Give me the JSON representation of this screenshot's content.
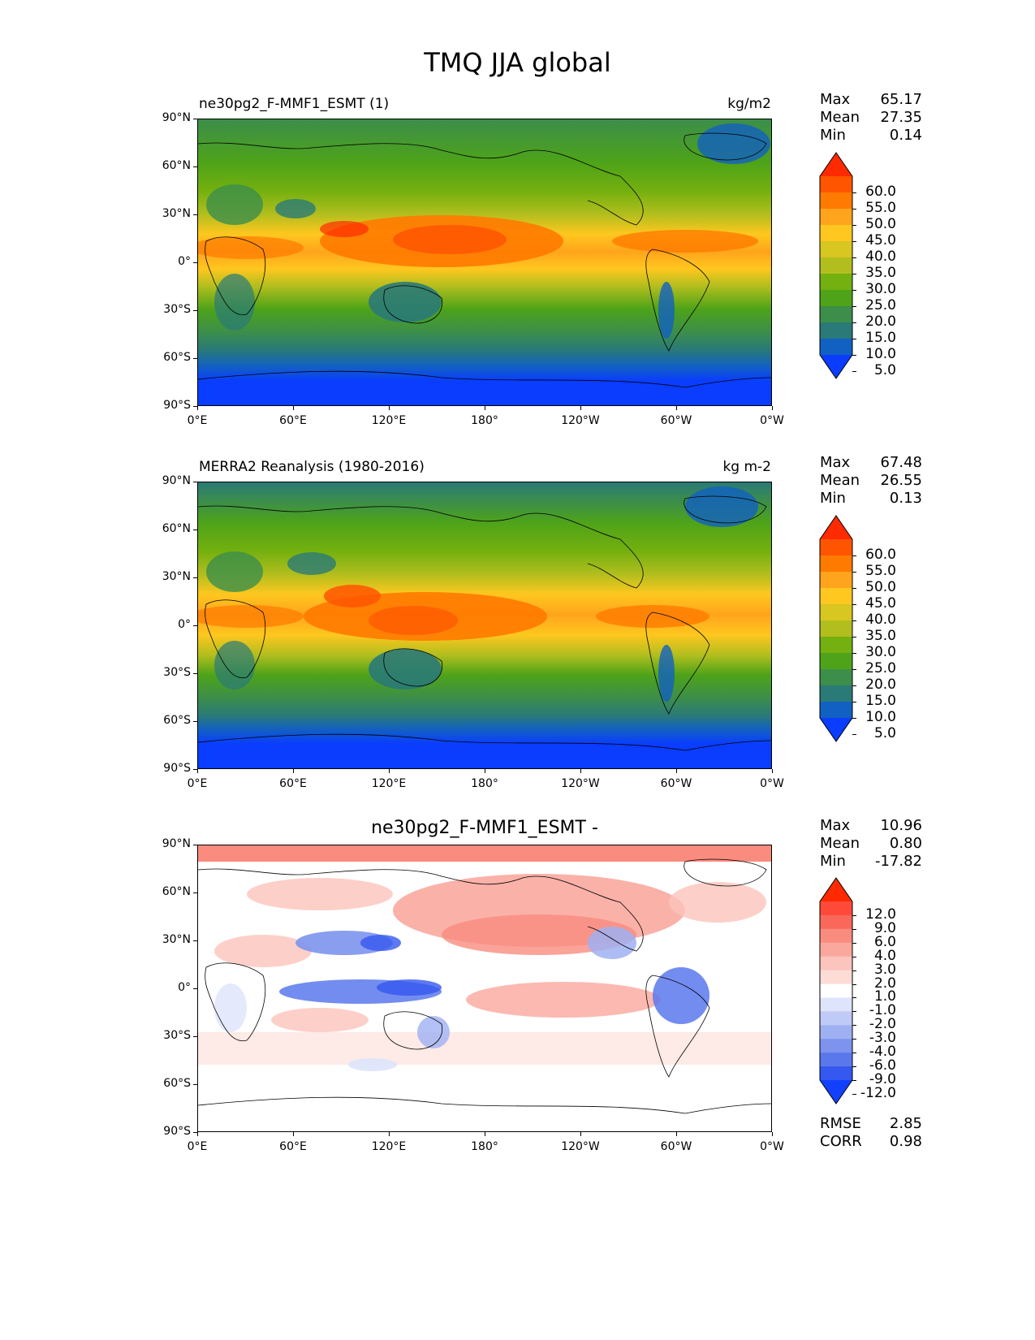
{
  "figure": {
    "title": "TMQ JJA global"
  },
  "axes": {
    "lat_labels": [
      "90°N",
      "60°N",
      "30°N",
      "0°",
      "30°S",
      "60°S",
      "90°S"
    ],
    "lon_labels": [
      "0°E",
      "60°E",
      "120°E",
      "180°",
      "120°W",
      "60°W",
      "0°W"
    ]
  },
  "panels": [
    {
      "id": "test",
      "left_title": "ne30pg2_F-MMF1_ESMT (1)",
      "right_title": "kg/m2",
      "center_title": "",
      "stats": [
        {
          "label": "Max",
          "value": "65.17"
        },
        {
          "label": "Mean",
          "value": "27.35"
        },
        {
          "label": "Min",
          "value": "0.14"
        }
      ],
      "colorbar": {
        "levels": [
          "60.0",
          "55.0",
          "50.0",
          "45.0",
          "40.0",
          "35.0",
          "30.0",
          "25.0",
          "20.0",
          "15.0",
          "10.0",
          "5.0"
        ],
        "colors": [
          "#ff2a00",
          "#ff5500",
          "#ff7a00",
          "#ffa41c",
          "#ffc71f",
          "#d8c621",
          "#b2be1e",
          "#74b00f",
          "#4ea319",
          "#3c8e4a",
          "#2a7a77",
          "#1260c2",
          "#0a3dff"
        ],
        "extend": "both"
      },
      "extra_stats": []
    },
    {
      "id": "reference",
      "left_title": "MERRA2 Reanalysis (1980-2016)",
      "right_title": "kg m-2",
      "center_title": "",
      "stats": [
        {
          "label": "Max",
          "value": "67.48"
        },
        {
          "label": "Mean",
          "value": "26.55"
        },
        {
          "label": "Min",
          "value": "0.13"
        }
      ],
      "colorbar": {
        "levels": [
          "60.0",
          "55.0",
          "50.0",
          "45.0",
          "40.0",
          "35.0",
          "30.0",
          "25.0",
          "20.0",
          "15.0",
          "10.0",
          "5.0"
        ],
        "colors": [
          "#ff2a00",
          "#ff5500",
          "#ff7a00",
          "#ffa41c",
          "#ffc71f",
          "#d8c621",
          "#b2be1e",
          "#74b00f",
          "#4ea319",
          "#3c8e4a",
          "#2a7a77",
          "#1260c2",
          "#0a3dff"
        ],
        "extend": "both"
      },
      "extra_stats": []
    },
    {
      "id": "difference",
      "left_title": "",
      "right_title": "",
      "center_title": "ne30pg2_F-MMF1_ESMT -",
      "stats": [
        {
          "label": "Max",
          "value": "10.96"
        },
        {
          "label": "Mean",
          "value": "0.80"
        },
        {
          "label": "Min",
          "value": "-17.82"
        }
      ],
      "colorbar": {
        "levels": [
          "12.0",
          "9.0",
          "6.0",
          "4.0",
          "3.0",
          "2.0",
          "1.0",
          "-1.0",
          "-2.0",
          "-3.0",
          "-4.0",
          "-6.0",
          "-9.0",
          "-12.0"
        ],
        "colors": [
          "#ff2a00",
          "#ff4a3a",
          "#f9685a",
          "#f98c7f",
          "#faa89e",
          "#fbc4bc",
          "#fddcd6",
          "#ffffff",
          "#dde4fb",
          "#bfcaf6",
          "#9fb0f2",
          "#7d93ee",
          "#5a78ec",
          "#3558f0",
          "#1240ff"
        ],
        "extend": "both"
      },
      "extra_stats": [
        {
          "label": "RMSE",
          "value": "2.85"
        },
        {
          "label": "CORR",
          "value": "0.98"
        }
      ]
    }
  ]
}
